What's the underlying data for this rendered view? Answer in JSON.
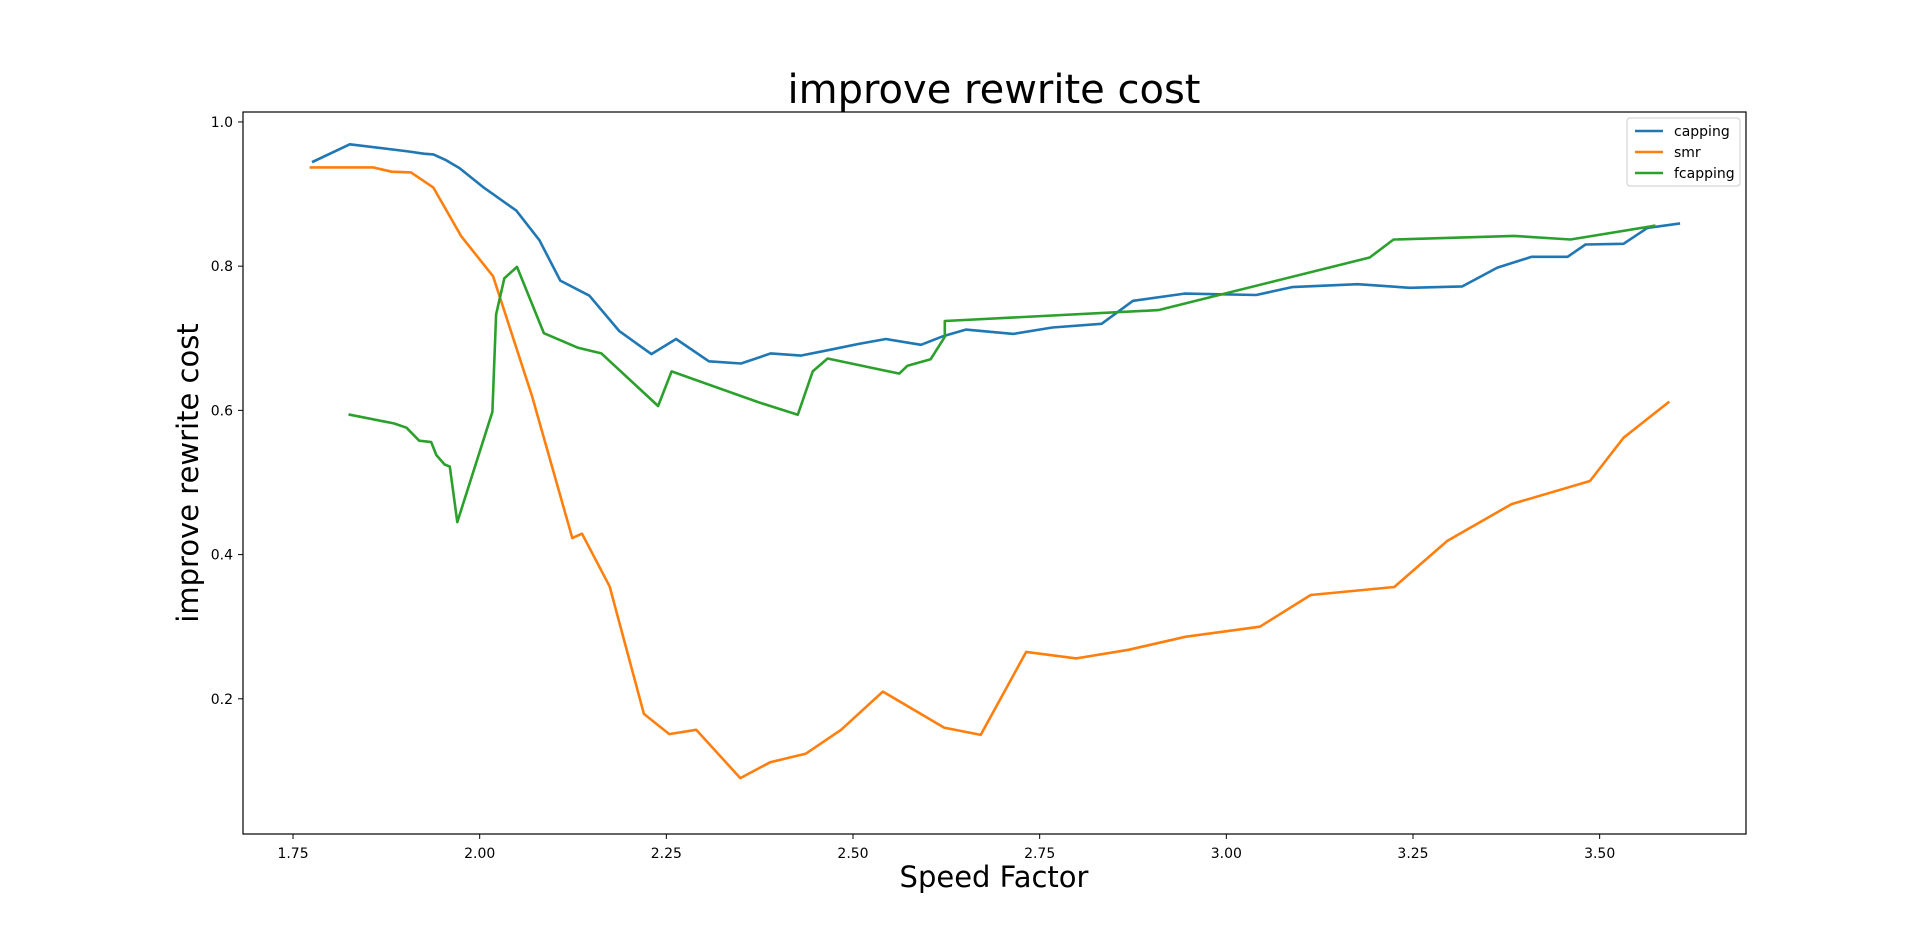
{
  "chart_data": {
    "type": "line",
    "title": "improve rewrite cost",
    "xlabel": "Speed Factor",
    "ylabel": "improve rewrite cost",
    "xlim": [
      1.683,
      3.696
    ],
    "ylim": [
      0.0125,
      1.0138
    ],
    "xticks": [
      1.75,
      2.0,
      2.25,
      2.5,
      2.75,
      3.0,
      3.25,
      3.5
    ],
    "xtick_labels": [
      "1.75",
      "2.00",
      "2.25",
      "2.50",
      "2.75",
      "3.00",
      "3.25",
      "3.50"
    ],
    "yticks": [
      0.2,
      0.4,
      0.6,
      0.8,
      1.0
    ],
    "ytick_labels": [
      "0.2",
      "0.4",
      "0.6",
      "0.8",
      "1.0"
    ],
    "grid": false,
    "legend_position": "top-right",
    "series": [
      {
        "name": "capping",
        "color": "#1f77b4",
        "x": [
          1.777,
          1.826,
          1.905,
          1.925,
          1.938,
          1.955,
          1.973,
          2.004,
          2.049,
          2.08,
          2.108,
          2.147,
          2.187,
          2.23,
          2.263,
          2.307,
          2.35,
          2.39,
          2.43,
          2.469,
          2.507,
          2.544,
          2.591,
          2.621,
          2.651,
          2.715,
          2.767,
          2.833,
          2.875,
          2.944,
          3.04,
          3.088,
          3.176,
          3.246,
          3.316,
          3.363,
          3.409,
          3.457,
          3.481,
          3.532,
          3.564,
          3.606
        ],
        "y": [
          0.945,
          0.969,
          0.959,
          0.956,
          0.955,
          0.947,
          0.936,
          0.91,
          0.877,
          0.836,
          0.78,
          0.759,
          0.71,
          0.678,
          0.699,
          0.668,
          0.665,
          0.679,
          0.676,
          0.684,
          0.692,
          0.699,
          0.691,
          0.703,
          0.712,
          0.706,
          0.715,
          0.72,
          0.752,
          0.762,
          0.76,
          0.771,
          0.775,
          0.77,
          0.772,
          0.798,
          0.813,
          0.813,
          0.83,
          0.831,
          0.853,
          0.859
        ]
      },
      {
        "name": "smr",
        "color": "#ff7f0e",
        "x": [
          1.774,
          1.857,
          1.882,
          1.908,
          1.938,
          1.975,
          2.018,
          2.07,
          2.124,
          2.137,
          2.174,
          2.22,
          2.254,
          2.29,
          2.349,
          2.389,
          2.437,
          2.484,
          2.54,
          2.622,
          2.671,
          2.732,
          2.799,
          2.869,
          2.945,
          3.045,
          3.113,
          3.225,
          3.296,
          3.382,
          3.487,
          3.532,
          3.592
        ],
        "y": [
          0.937,
          0.937,
          0.931,
          0.93,
          0.909,
          0.842,
          0.786,
          0.62,
          0.423,
          0.429,
          0.356,
          0.179,
          0.151,
          0.157,
          0.09,
          0.112,
          0.124,
          0.157,
          0.21,
          0.16,
          0.15,
          0.265,
          0.256,
          0.268,
          0.286,
          0.3,
          0.344,
          0.355,
          0.419,
          0.47,
          0.502,
          0.562,
          0.611
        ]
      },
      {
        "name": "fcapping",
        "color": "#2ca02c",
        "x": [
          1.826,
          1.885,
          1.902,
          1.919,
          1.935,
          1.942,
          1.953,
          1.96,
          1.97,
          2.017,
          2.022,
          2.033,
          2.05,
          2.086,
          2.131,
          2.163,
          2.239,
          2.257,
          2.374,
          2.426,
          2.446,
          2.466,
          2.562,
          2.573,
          2.604,
          2.623,
          2.623,
          2.909,
          3.192,
          3.224,
          3.385,
          3.461,
          3.573
        ],
        "y": [
          0.594,
          0.582,
          0.576,
          0.558,
          0.556,
          0.538,
          0.525,
          0.522,
          0.445,
          0.598,
          0.733,
          0.783,
          0.799,
          0.707,
          0.687,
          0.679,
          0.606,
          0.654,
          0.611,
          0.594,
          0.654,
          0.672,
          0.651,
          0.662,
          0.671,
          0.702,
          0.724,
          0.739,
          0.812,
          0.837,
          0.842,
          0.837,
          0.856
        ]
      }
    ]
  }
}
